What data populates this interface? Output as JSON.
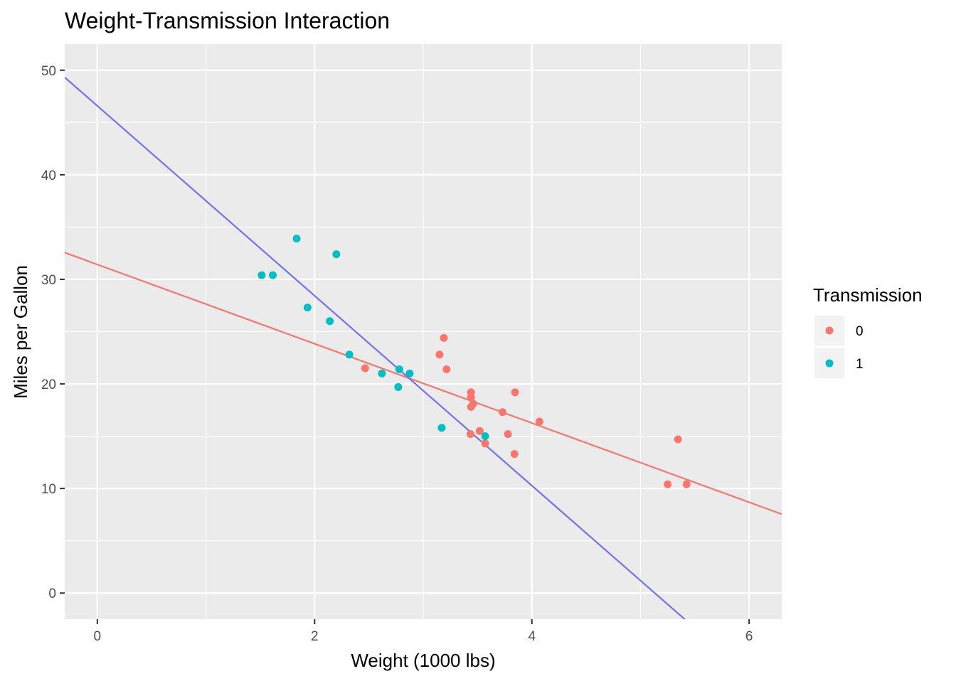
{
  "chart_data": {
    "type": "scatter",
    "title": "Weight-Transmission Interaction",
    "xlabel": "Weight (1000 lbs)",
    "ylabel": "Miles per Gallon",
    "xlim": [
      -0.3,
      6.3
    ],
    "ylim": [
      -2.5,
      52.5
    ],
    "x_ticks": [
      0,
      2,
      4,
      6
    ],
    "y_ticks": [
      0,
      10,
      20,
      30,
      40,
      50
    ],
    "grid": true,
    "legend": {
      "title": "Transmission",
      "position": "right",
      "entries": [
        "0",
        "1"
      ]
    },
    "colors": {
      "series_0": "#F8766D",
      "series_1": "#00BFC4",
      "fit_1": "#7570F2",
      "panel_bg": "#EBEBEB",
      "grid": "#FFFFFF"
    },
    "series": [
      {
        "name": "0",
        "points": [
          [
            3.215,
            21.4
          ],
          [
            3.44,
            18.7
          ],
          [
            3.46,
            18.1
          ],
          [
            3.57,
            14.3
          ],
          [
            3.19,
            24.4
          ],
          [
            3.15,
            22.8
          ],
          [
            3.44,
            19.2
          ],
          [
            3.44,
            17.8
          ],
          [
            4.07,
            16.4
          ],
          [
            3.73,
            17.3
          ],
          [
            3.78,
            15.2
          ],
          [
            5.25,
            10.4
          ],
          [
            5.424,
            10.4
          ],
          [
            5.345,
            14.7
          ],
          [
            2.465,
            21.5
          ],
          [
            3.52,
            15.5
          ],
          [
            3.435,
            15.2
          ],
          [
            3.84,
            13.3
          ],
          [
            3.845,
            19.2
          ]
        ],
        "fit": {
          "intercept": 31.42,
          "slope": -3.79
        }
      },
      {
        "name": "1",
        "points": [
          [
            2.62,
            21.0
          ],
          [
            2.875,
            21.0
          ],
          [
            2.32,
            22.8
          ],
          [
            2.2,
            32.4
          ],
          [
            1.615,
            30.4
          ],
          [
            1.835,
            33.9
          ],
          [
            1.935,
            27.3
          ],
          [
            2.14,
            26.0
          ],
          [
            1.513,
            30.4
          ],
          [
            3.17,
            15.8
          ],
          [
            2.77,
            19.7
          ],
          [
            3.57,
            15.0
          ],
          [
            2.78,
            21.4
          ]
        ],
        "fit": {
          "intercept": 46.59,
          "slope": -9.08
        }
      }
    ]
  }
}
